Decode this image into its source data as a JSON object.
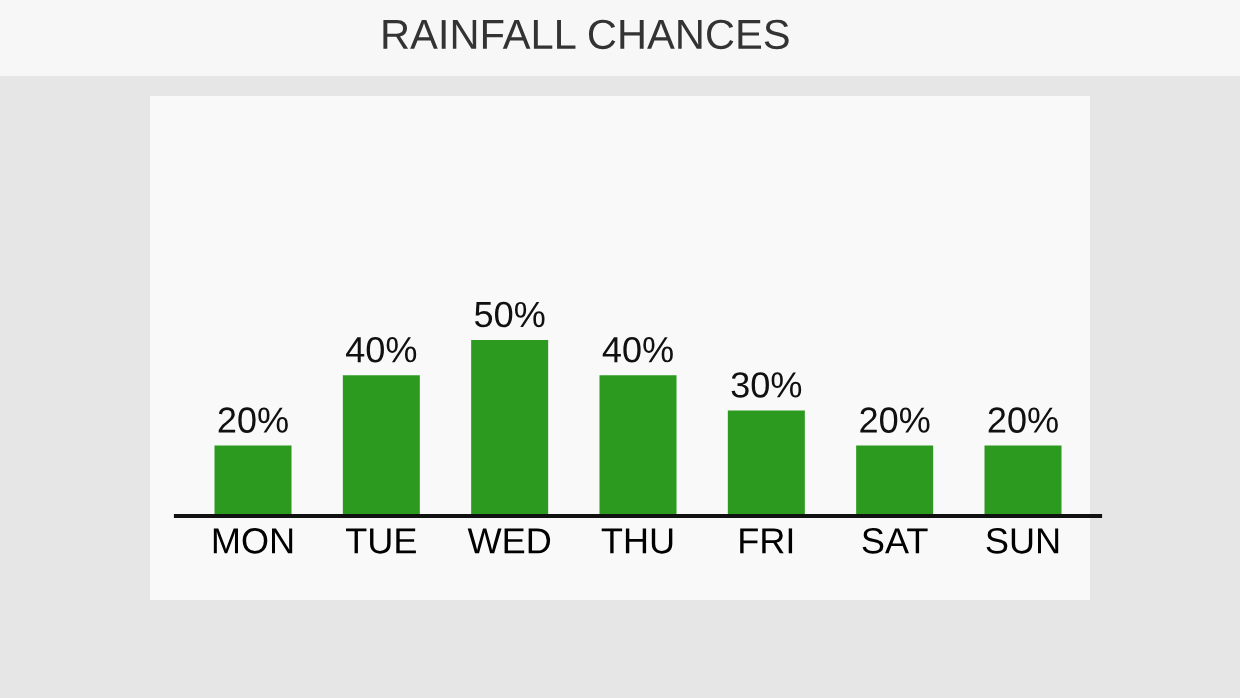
{
  "chart_data": {
    "type": "bar",
    "title": "RAINFALL CHANCES",
    "categories": [
      "MON",
      "TUE",
      "WED",
      "THU",
      "FRI",
      "SAT",
      "SUN"
    ],
    "values": [
      20,
      40,
      50,
      40,
      30,
      20,
      20
    ],
    "value_labels": [
      "20%",
      "40%",
      "50%",
      "40%",
      "30%",
      "20%",
      "20%"
    ],
    "color": "#2b9a1f",
    "grid": false,
    "legend": false
  }
}
